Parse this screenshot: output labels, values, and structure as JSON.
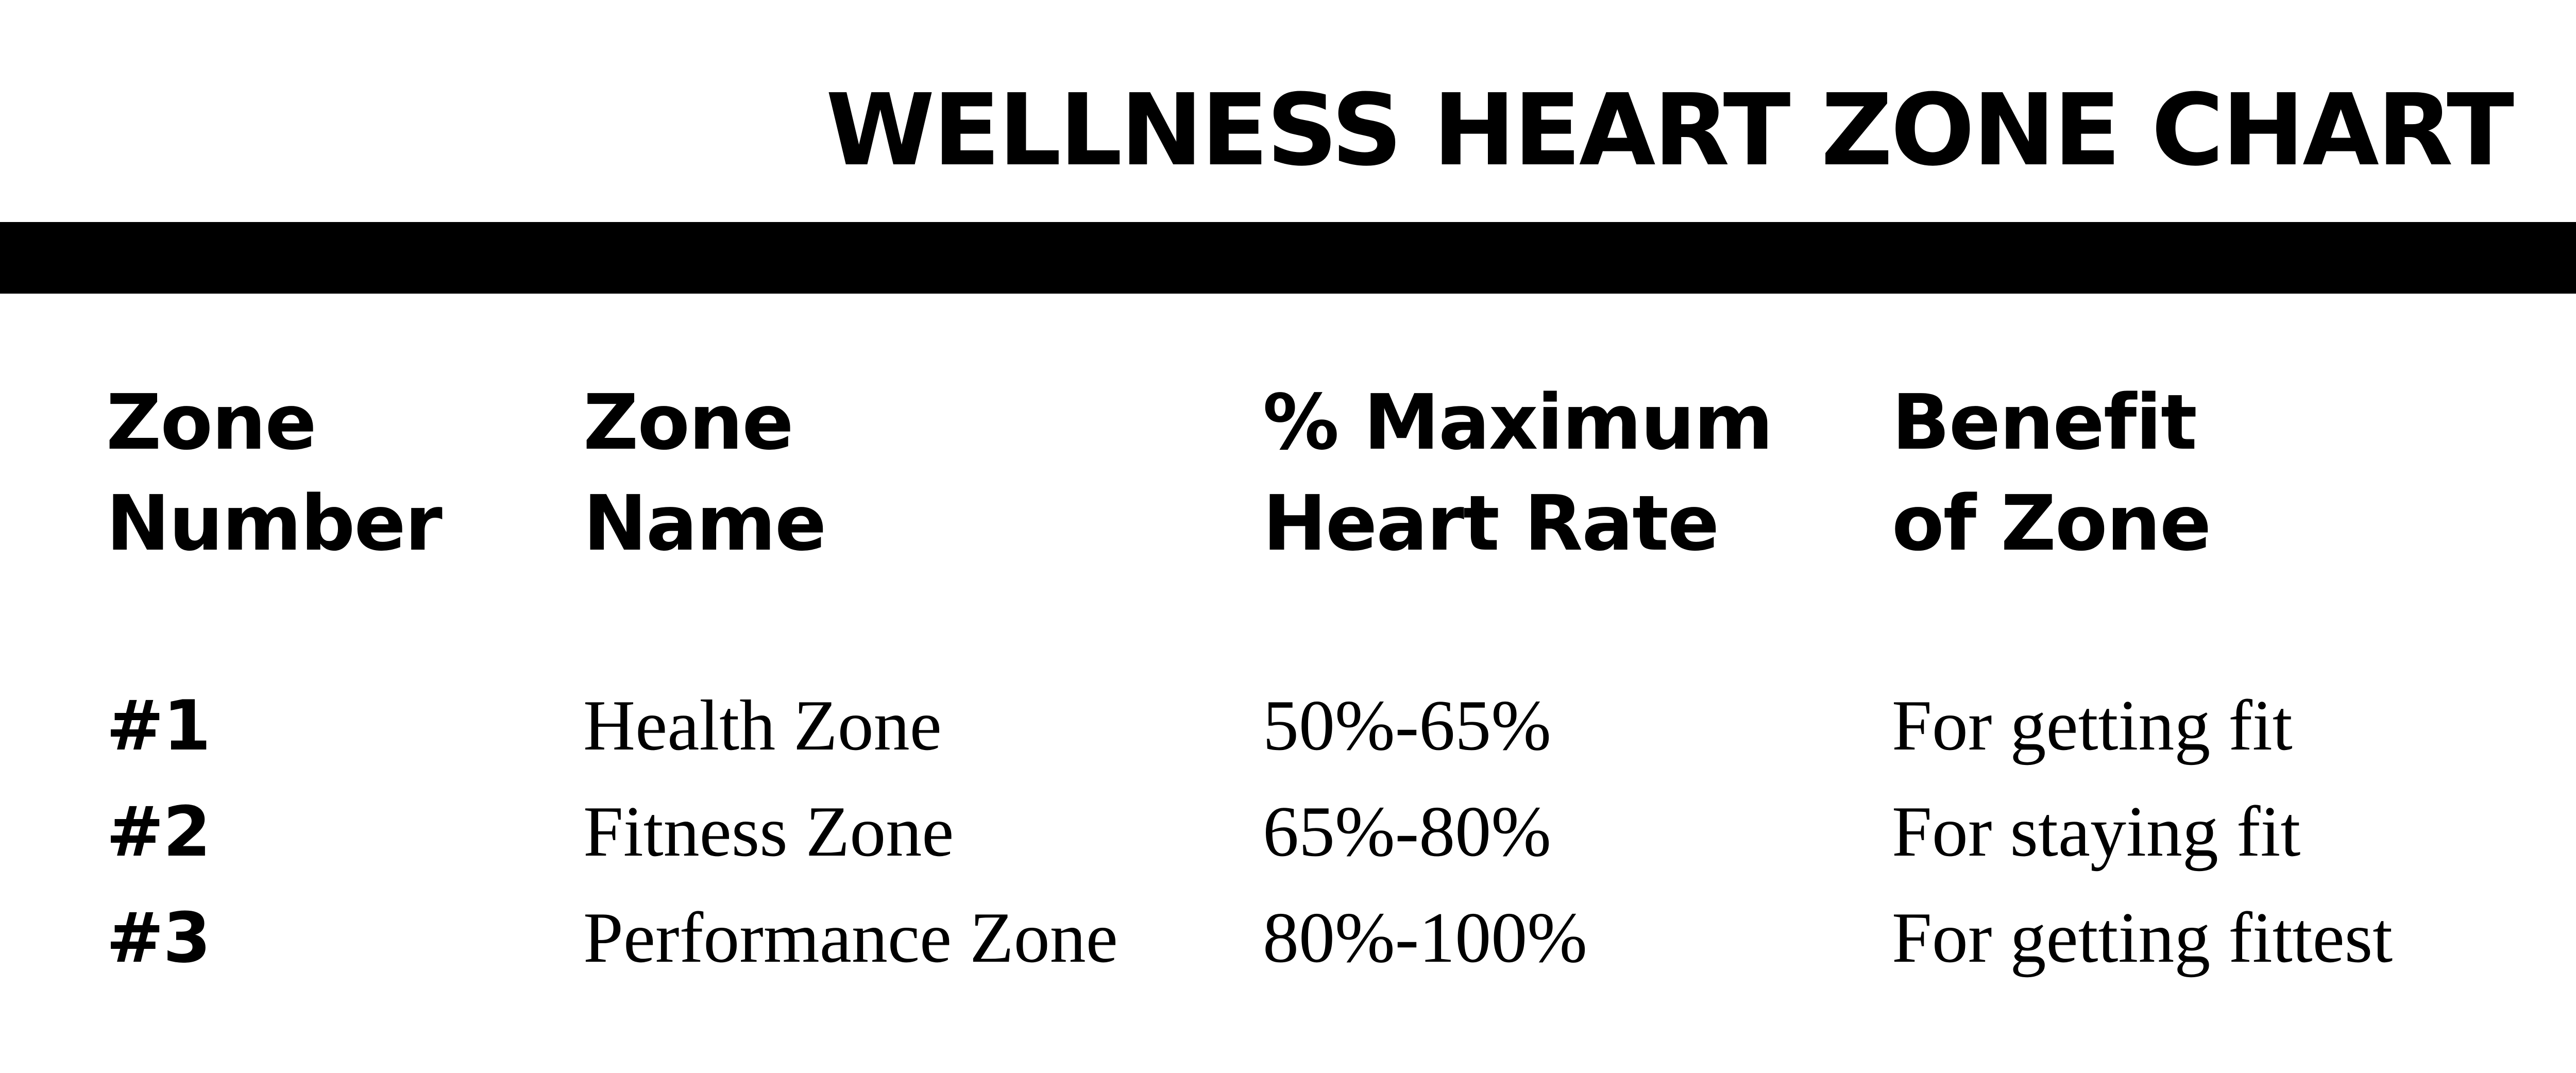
{
  "page": {
    "background_color": "#ffffff",
    "text_color": "#000000",
    "bar_color": "#000000"
  },
  "title": "WELLNESS HEART ZONE CHART",
  "table": {
    "columns": [
      {
        "line1": "Zone",
        "line2": "Number"
      },
      {
        "line1": "Zone",
        "line2": "Name"
      },
      {
        "line1": "% Maximum",
        "line2": "Heart Rate"
      },
      {
        "line1": "Benefit",
        "line2": "of Zone"
      }
    ],
    "rows": [
      {
        "zone_number": "#1",
        "zone_name": "Health Zone",
        "max_heart_rate": "50%-65%",
        "benefit": "For getting fit"
      },
      {
        "zone_number": "#2",
        "zone_name": "Fitness Zone",
        "max_heart_rate": "65%-80%",
        "benefit": "For staying fit"
      },
      {
        "zone_number": "#3",
        "zone_name": "Performance Zone",
        "max_heart_rate": "80%-100%",
        "benefit": "For getting fittest"
      }
    ]
  },
  "chart_data": {
    "type": "table",
    "title": "WELLNESS HEART ZONE CHART",
    "columns": [
      "Zone Number",
      "Zone Name",
      "% Maximum Heart Rate",
      "Benefit of Zone"
    ],
    "rows": [
      [
        "#1",
        "Health Zone",
        "50%-65%",
        "For getting fit"
      ],
      [
        "#2",
        "Fitness Zone",
        "65%-80%",
        "For staying fit"
      ],
      [
        "#3",
        "Performance Zone",
        "80%-100%",
        "For getting fittest"
      ]
    ],
    "zones": [
      {
        "zone_number": 1,
        "zone_name": "Health Zone",
        "max_hr_pct_low": 50,
        "max_hr_pct_high": 65,
        "benefit": "For getting fit"
      },
      {
        "zone_number": 2,
        "zone_name": "Fitness Zone",
        "max_hr_pct_low": 65,
        "max_hr_pct_high": 80,
        "benefit": "For staying fit"
      },
      {
        "zone_number": 3,
        "zone_name": "Performance Zone",
        "max_hr_pct_low": 80,
        "max_hr_pct_high": 100,
        "benefit": "For getting fittest"
      }
    ]
  }
}
